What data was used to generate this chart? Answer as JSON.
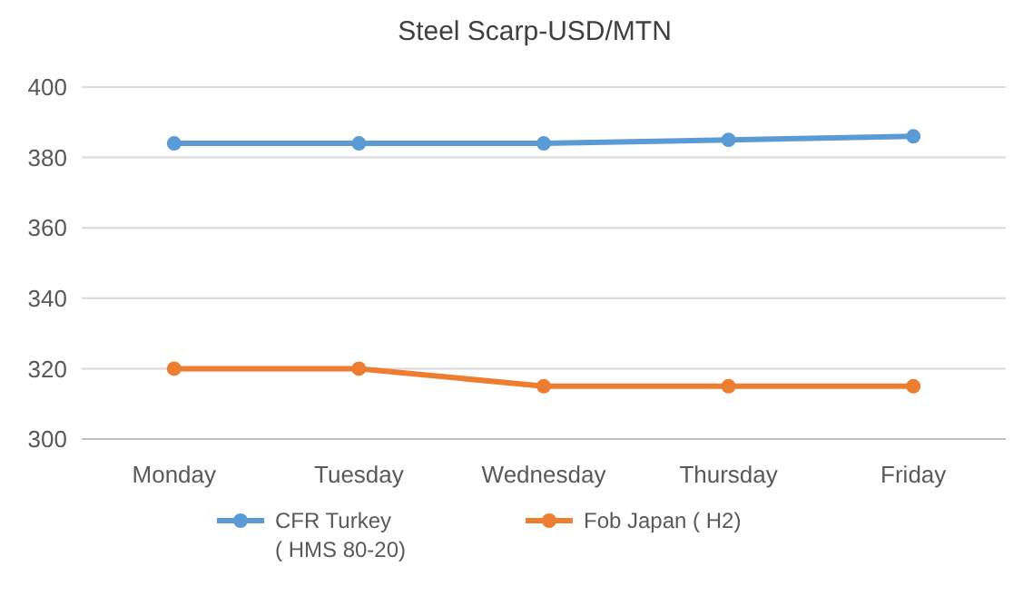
{
  "chart_data": {
    "type": "line",
    "title": "Steel Scarp-USD/MTN",
    "categories": [
      "Monday",
      "Tuesday",
      "Wednesday",
      "Thursday",
      "Friday"
    ],
    "series": [
      {
        "name": "CFR Turkey\n( HMS 80-20)",
        "color": "#5b9bd5",
        "values": [
          384,
          384,
          384,
          385,
          386
        ]
      },
      {
        "name": "Fob Japan ( H2)",
        "color": "#ed7d31",
        "values": [
          320,
          320,
          315,
          315,
          315
        ]
      }
    ],
    "ylim": [
      300,
      400
    ],
    "yticks": [
      300,
      320,
      340,
      360,
      380,
      400
    ],
    "grid": "y",
    "legend": "bottom",
    "marker": "circle",
    "line_style": "solid"
  }
}
